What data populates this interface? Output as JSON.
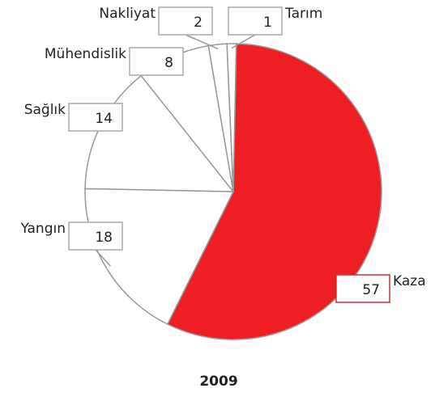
{
  "chart_data": {
    "type": "pie",
    "title": "2009",
    "categories": [
      "Kaza",
      "Yangın",
      "Sağlık",
      "Mühendislik",
      "Nakliyat",
      "Tarım"
    ],
    "values": [
      57,
      18,
      14,
      8,
      2,
      1
    ],
    "colors": [
      "#ed1f24",
      "#ffffff",
      "#ffffff",
      "#ffffff",
      "#ffffff",
      "#ffffff"
    ]
  }
}
